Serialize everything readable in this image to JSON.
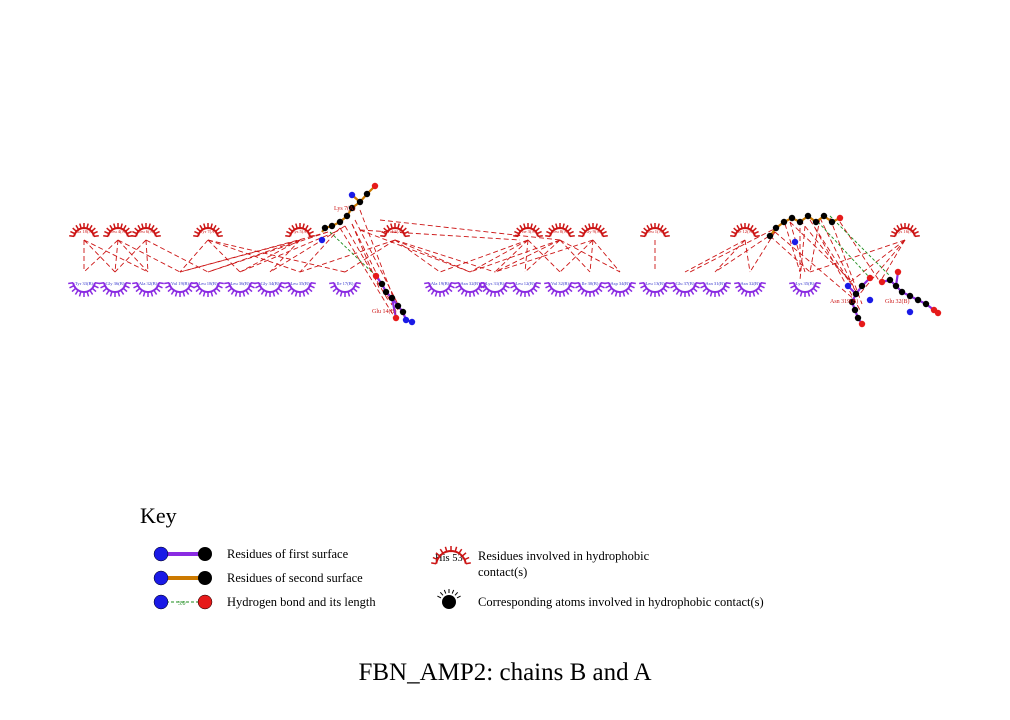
{
  "title": "FBN_AMP2: chains B and A",
  "colors": {
    "first_surface_bond": "#8a2be2",
    "second_surface_bond": "#cc7a00",
    "nitrogen": "#1a1ae6",
    "oxygen": "#e61a1a",
    "carbon": "#000000",
    "hbond": "#1c8c1c",
    "hydrophobic": "#cc1414",
    "chain_b_label": "#3333cc",
    "chain_a_label": "#cc1414"
  },
  "key": {
    "heading": "Key",
    "first_surface": "Residues of first surface",
    "second_surface": "Residues of second surface",
    "hbond": "Hydrogen bond and its length",
    "hbond_length": "3.0",
    "hydrophobic_example": "His 53",
    "hydrophobic_line1": "Residues involved in hydrophobic",
    "hydrophobic_line2": "contact(s)",
    "atoms": "Corresponding atoms involved in hydrophobic contact(s)"
  },
  "chain_a_residues": [
    {
      "label": "Ala 18(A)"
    },
    {
      "label": "Leu 4(A)"
    },
    {
      "label": "Leu 6(A)"
    },
    {
      "label": "Tyr 7(A)"
    },
    {
      "label": "Lys 5(A)"
    },
    {
      "label": "Val 2(A)"
    },
    {
      "label": "Phe 3(A)"
    },
    {
      "label": "Leu 8(A)"
    },
    {
      "label": "Gly 9(A)"
    },
    {
      "label": "Leu 1(A)"
    },
    {
      "label": "Ile 12(A)"
    },
    {
      "label": "Lys 16(A)"
    }
  ],
  "chain_b_residues": [
    {
      "label": "Tyr 33(B)"
    },
    {
      "label": "Gly 36(B)"
    },
    {
      "label": "Ala 32(B)"
    },
    {
      "label": "Val 19(B)"
    },
    {
      "label": "Leu 18(B)"
    },
    {
      "label": "Leu 36(B)"
    },
    {
      "label": "Gly 34(B)"
    },
    {
      "label": "Leu 35(B)"
    },
    {
      "label": "Ile 17(B)"
    },
    {
      "label": "Ala 19(B)"
    },
    {
      "label": "Asn 32(B)"
    },
    {
      "label": "Lys 31(B)"
    },
    {
      "label": "Leu 12(B)"
    },
    {
      "label": "Val 32(B)"
    },
    {
      "label": "Ile 30(B)"
    },
    {
      "label": "Asp 34(B)"
    },
    {
      "label": "Leu 13(B)"
    },
    {
      "label": "Glu 37(B)"
    },
    {
      "label": "Asn 31(B)"
    },
    {
      "label": "Asn 32(B)"
    },
    {
      "label": "Lys 35(B)"
    }
  ],
  "ligand_residues": [
    {
      "label": "Lys 7(A)"
    },
    {
      "label": "Glu 14(B)"
    },
    {
      "label": "Asn 319(B)"
    },
    {
      "label": "Glu 32(B)"
    }
  ]
}
